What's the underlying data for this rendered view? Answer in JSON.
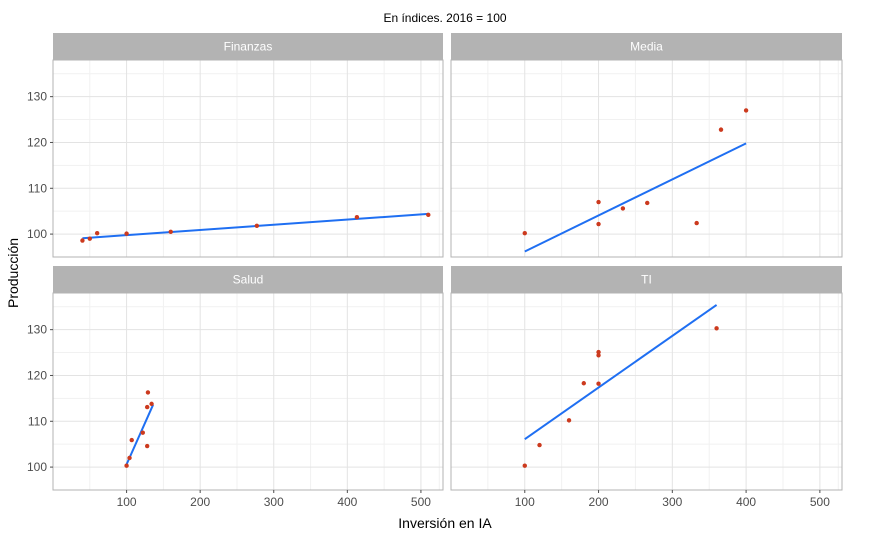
{
  "chart_data": {
    "type": "scatter",
    "subtitle": "En índices. 2016 = 100",
    "xlabel": "Inversión en IA",
    "ylabel": "Producción",
    "xlim": [
      0,
      530
    ],
    "ylim": [
      95,
      138
    ],
    "x_ticks": [
      100,
      200,
      300,
      400,
      500
    ],
    "y_ticks": [
      100,
      110,
      120,
      130
    ],
    "grid": true,
    "legend": "none",
    "colors": {
      "point": "#cc3a1e",
      "fit_line": "#1f6ff2",
      "strip_bg": "#b3b3b3",
      "grid_major": "#e3e3e3",
      "grid_minor": "#f1f1f1",
      "panel_border": "#b3b3b3"
    },
    "panels": [
      {
        "name": "Finanzas",
        "points": [
          [
            40,
            98.6
          ],
          [
            50,
            99.0
          ],
          [
            60,
            100.2
          ],
          [
            100,
            100.1
          ],
          [
            160,
            100.5
          ],
          [
            277,
            101.8
          ],
          [
            413,
            103.7
          ],
          [
            510,
            104.2
          ]
        ],
        "fit": [
          [
            40,
            99.1
          ],
          [
            510,
            104.4
          ]
        ]
      },
      {
        "name": "Media",
        "points": [
          [
            100,
            100.2
          ],
          [
            200,
            107.0
          ],
          [
            200,
            102.2
          ],
          [
            233,
            105.6
          ],
          [
            266,
            106.8
          ],
          [
            333,
            102.4
          ],
          [
            366,
            122.8
          ],
          [
            400,
            127.0
          ]
        ],
        "fit": [
          [
            100,
            96.2
          ],
          [
            400,
            119.8
          ]
        ]
      },
      {
        "name": "Salud",
        "points": [
          [
            100,
            100.3
          ],
          [
            104,
            102.0
          ],
          [
            107,
            105.9
          ],
          [
            122,
            107.5
          ],
          [
            128,
            104.6
          ],
          [
            128,
            113.1
          ],
          [
            129,
            116.3
          ],
          [
            134,
            113.8
          ]
        ],
        "fit": [
          [
            100,
            100.6
          ],
          [
            136,
            113.6
          ]
        ]
      },
      {
        "name": "TI",
        "points": [
          [
            100,
            100.3
          ],
          [
            120,
            104.8
          ],
          [
            160,
            110.2
          ],
          [
            180,
            118.3
          ],
          [
            200,
            118.2
          ],
          [
            200,
            124.4
          ],
          [
            200,
            125.1
          ],
          [
            360,
            130.3
          ]
        ],
        "fit": [
          [
            100,
            106.1
          ],
          [
            360,
            135.4
          ]
        ]
      }
    ]
  }
}
